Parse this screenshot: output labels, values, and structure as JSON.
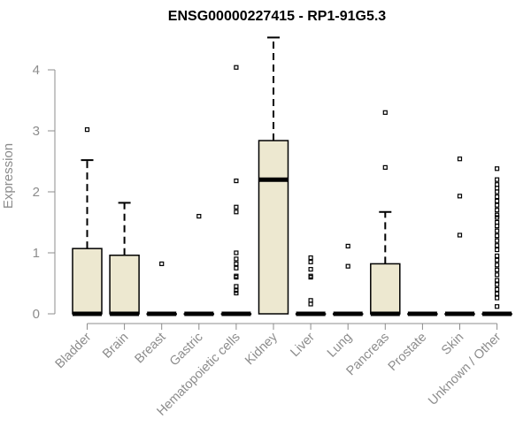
{
  "chart_data": {
    "type": "boxplot",
    "title": "ENSG00000227415 - RP1-91G5.3",
    "xlabel": "",
    "ylabel": "Expression",
    "ylim": [
      0,
      4.6
    ],
    "yticks": [
      "0",
      "1",
      "2",
      "3",
      "4"
    ],
    "grid": false,
    "box_fill": "#ede8d0",
    "categories": [
      "Bladder",
      "Brain",
      "Breast",
      "Gastric",
      "Hematopoietic cells",
      "Kidney",
      "Liver",
      "Lung",
      "Pancreas",
      "Prostate",
      "Skin",
      "Unknown / Other"
    ],
    "series": [
      {
        "category": "Bladder",
        "q1": 0,
        "median": 0,
        "q3": 1.07,
        "whisker_low": 0,
        "whisker_high": 2.52,
        "outliers": [
          3.02
        ]
      },
      {
        "category": "Brain",
        "q1": 0,
        "median": 0,
        "q3": 0.96,
        "whisker_low": 0,
        "whisker_high": 1.82,
        "outliers": []
      },
      {
        "category": "Breast",
        "q1": 0,
        "median": 0,
        "q3": 0,
        "whisker_low": 0,
        "whisker_high": 0,
        "outliers": [
          0.82
        ]
      },
      {
        "category": "Gastric",
        "q1": 0,
        "median": 0,
        "q3": 0,
        "whisker_low": 0,
        "whisker_high": 0,
        "outliers": [
          1.6
        ]
      },
      {
        "category": "Hematopoietic cells",
        "q1": 0,
        "median": 0,
        "q3": 0,
        "whisker_low": 0,
        "whisker_high": 0,
        "outliers": [
          4.04,
          2.18,
          1.75,
          1.67,
          1.0,
          0.9,
          0.82,
          0.75,
          0.62,
          0.6,
          0.45,
          0.38,
          0.34
        ]
      },
      {
        "category": "Kidney",
        "q1": 0,
        "median": 2.2,
        "q3": 2.84,
        "whisker_low": 0,
        "whisker_high": 4.53,
        "outliers": []
      },
      {
        "category": "Liver",
        "q1": 0,
        "median": 0,
        "q3": 0,
        "whisker_low": 0,
        "whisker_high": 0,
        "outliers": [
          0.92,
          0.85,
          0.73,
          0.62,
          0.6,
          0.22,
          0.16
        ]
      },
      {
        "category": "Lung",
        "q1": 0,
        "median": 0,
        "q3": 0,
        "whisker_low": 0,
        "whisker_high": 0,
        "outliers": [
          1.11,
          0.78
        ]
      },
      {
        "category": "Pancreas",
        "q1": 0,
        "median": 0,
        "q3": 0.82,
        "whisker_low": 0,
        "whisker_high": 1.67,
        "outliers": [
          3.3,
          2.4
        ]
      },
      {
        "category": "Prostate",
        "q1": 0,
        "median": 0,
        "q3": 0,
        "whisker_low": 0,
        "whisker_high": 0,
        "outliers": []
      },
      {
        "category": "Skin",
        "q1": 0,
        "median": 0,
        "q3": 0,
        "whisker_low": 0,
        "whisker_high": 0,
        "outliers": [
          2.54,
          1.93,
          1.29
        ]
      },
      {
        "category": "Unknown / Other",
        "q1": 0,
        "median": 0,
        "q3": 0,
        "whisker_low": 0,
        "whisker_high": 0,
        "outliers": [
          2.38,
          2.2,
          2.12,
          2.06,
          2.0,
          1.92,
          1.85,
          1.78,
          1.7,
          1.62,
          1.58,
          1.5,
          1.44,
          1.36,
          1.28,
          1.2,
          1.12,
          1.05,
          0.95,
          0.88,
          0.8,
          0.72,
          0.64,
          0.55,
          0.48,
          0.4,
          0.33,
          0.26,
          0.12
        ]
      }
    ]
  }
}
